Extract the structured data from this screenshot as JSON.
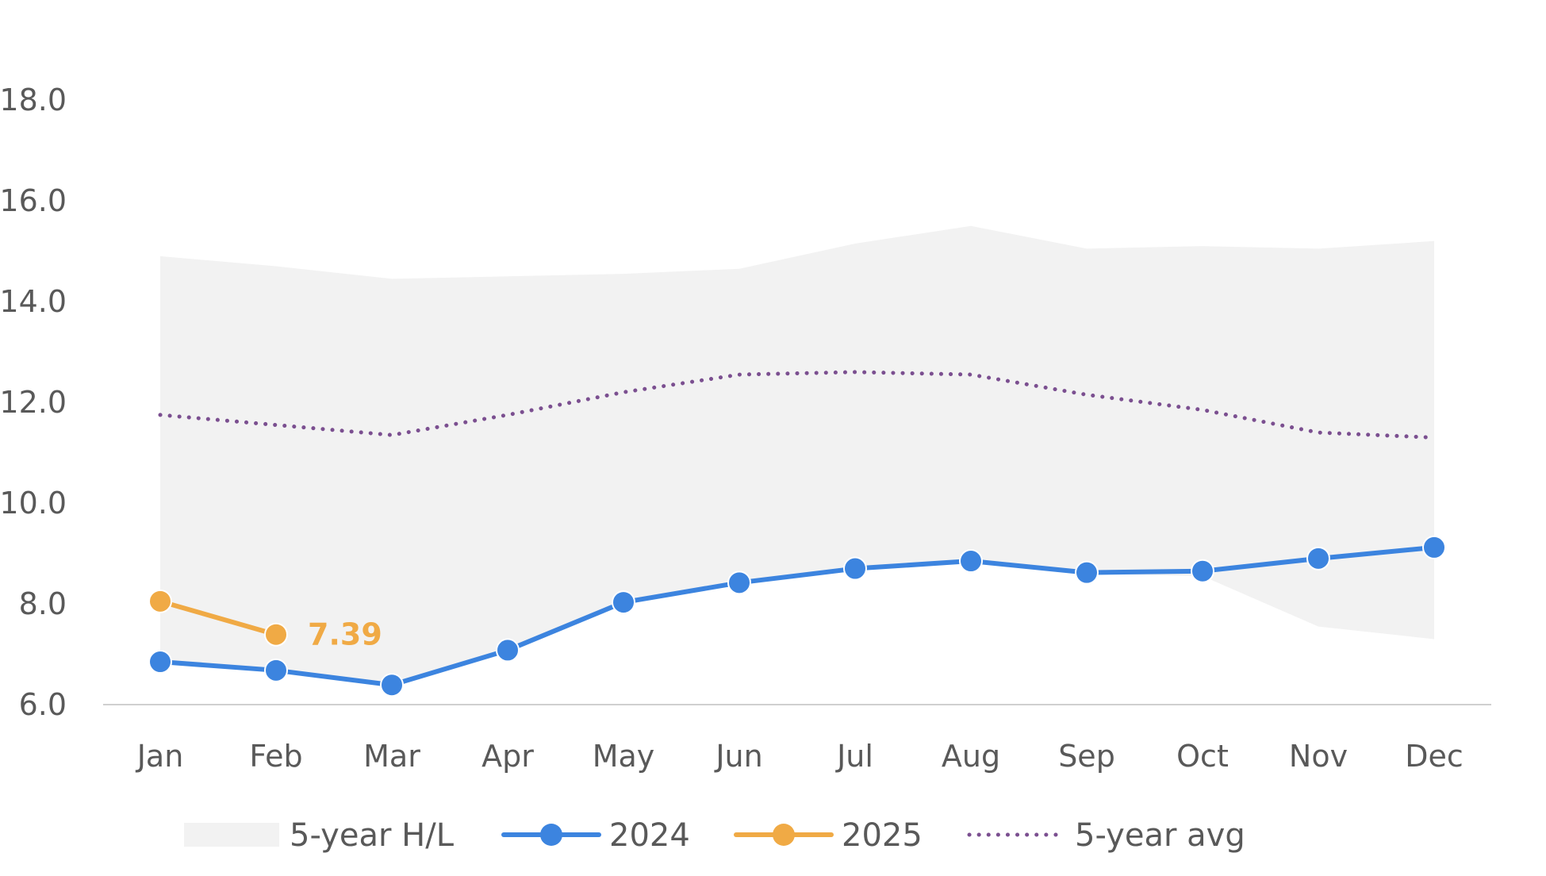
{
  "chart_data": {
    "type": "line",
    "categories": [
      "Jan",
      "Feb",
      "Mar",
      "Apr",
      "May",
      "Jun",
      "Jul",
      "Aug",
      "Sep",
      "Oct",
      "Nov",
      "Dec"
    ],
    "ylim": [
      6.0,
      18.0
    ],
    "yticks": [
      "6.0",
      "8.0",
      "10.0",
      "12.0",
      "14.0",
      "16.0",
      "18.0"
    ],
    "band": {
      "name": "5-year H/L",
      "color": "#F2F2F2",
      "high": [
        14.9,
        14.7,
        14.45,
        14.5,
        14.55,
        14.65,
        15.15,
        15.5,
        15.05,
        15.1,
        15.05,
        15.2
      ],
      "low": [
        6.9,
        6.7,
        6.4,
        7.1,
        8.0,
        8.4,
        8.7,
        8.85,
        8.6,
        8.55,
        7.55,
        7.3
      ]
    },
    "series": [
      {
        "name": "2024",
        "color": "#3C84DF",
        "style": "solid-markers",
        "values": [
          6.85,
          6.68,
          6.39,
          7.08,
          8.03,
          8.42,
          8.7,
          8.85,
          8.62,
          8.65,
          8.9,
          9.12
        ]
      },
      {
        "name": "2025",
        "color": "#F0AA45",
        "style": "solid-markers",
        "values": [
          8.05,
          7.39,
          null,
          null,
          null,
          null,
          null,
          null,
          null,
          null,
          null,
          null
        ]
      },
      {
        "name": "5-year avg",
        "color": "#7B4F90",
        "style": "dotted",
        "values": [
          11.75,
          11.55,
          11.35,
          11.75,
          12.2,
          12.55,
          12.6,
          12.55,
          12.15,
          11.85,
          11.4,
          11.3
        ]
      }
    ],
    "annotations": [
      {
        "series": "2025",
        "index": 1,
        "text": "7.39"
      }
    ],
    "legend": [
      "5-year H/L",
      "2024",
      "2025",
      "5-year avg"
    ],
    "legend_position": "bottom",
    "grid": false,
    "title": "",
    "xlabel": "",
    "ylabel": ""
  }
}
